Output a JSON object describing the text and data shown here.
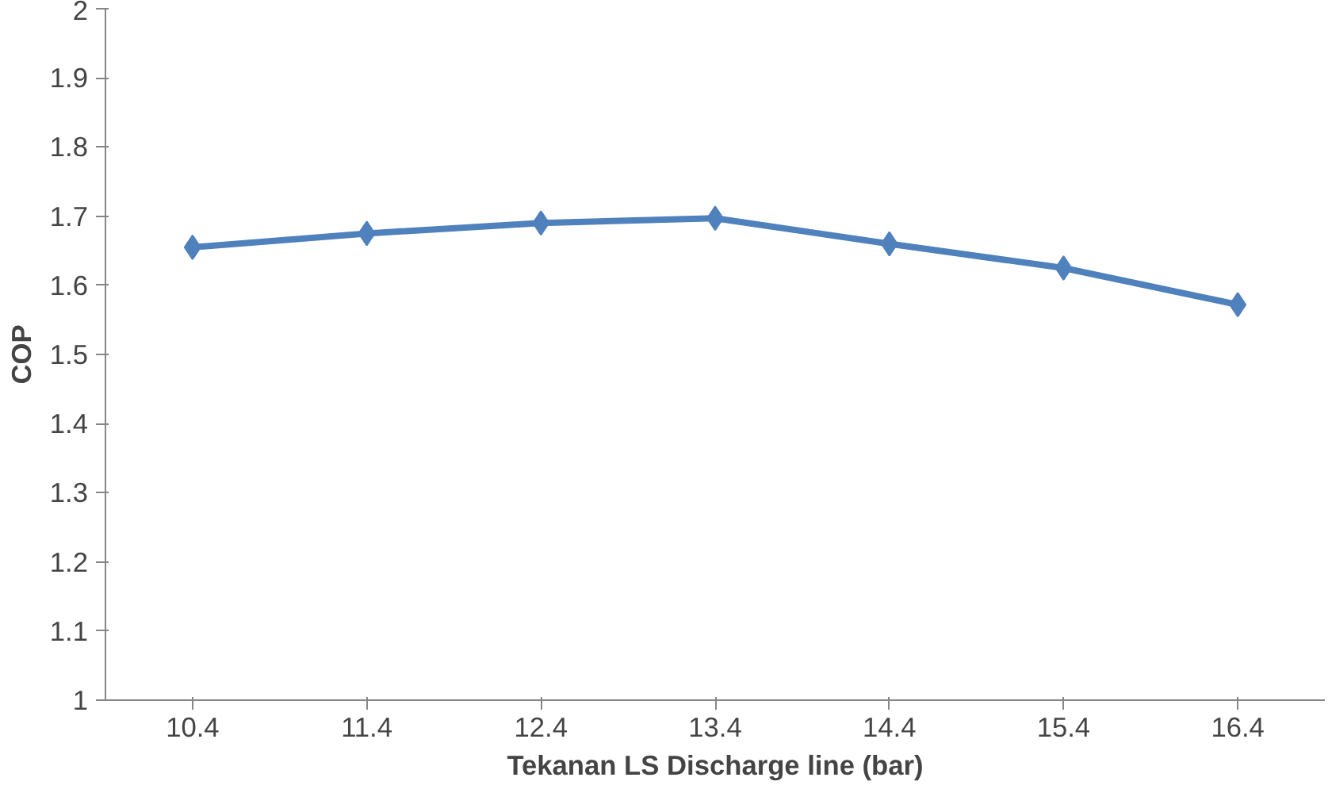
{
  "chart_data": {
    "type": "line",
    "xlabel": "Tekanan LS Discharge line (bar)",
    "ylabel": "COP",
    "categories": [
      "10.4",
      "11.4",
      "12.4",
      "13.4",
      "14.4",
      "15.4",
      "16.4"
    ],
    "series": [
      {
        "color": "#4f81bd",
        "values": [
          1.655,
          1.675,
          1.69,
          1.697,
          1.66,
          1.625,
          1.572
        ]
      }
    ],
    "ylim": [
      1,
      2
    ],
    "yticks": [
      1,
      1.1,
      1.2,
      1.3,
      1.4,
      1.5,
      1.6,
      1.7,
      1.8,
      1.9,
      2
    ],
    "marker": "diamond",
    "line_style": "solid"
  }
}
